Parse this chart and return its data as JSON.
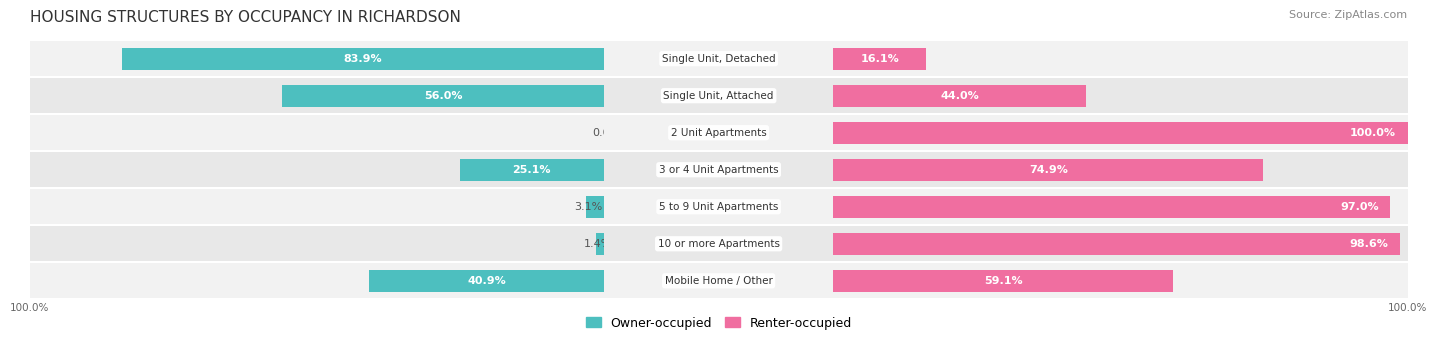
{
  "title": "HOUSING STRUCTURES BY OCCUPANCY IN RICHARDSON",
  "source": "Source: ZipAtlas.com",
  "categories": [
    "Single Unit, Detached",
    "Single Unit, Attached",
    "2 Unit Apartments",
    "3 or 4 Unit Apartments",
    "5 to 9 Unit Apartments",
    "10 or more Apartments",
    "Mobile Home / Other"
  ],
  "owner_pct": [
    83.9,
    56.0,
    0.0,
    25.1,
    3.1,
    1.4,
    40.9
  ],
  "renter_pct": [
    16.1,
    44.0,
    100.0,
    74.9,
    97.0,
    98.6,
    59.1
  ],
  "owner_color": "#4DBFBF",
  "renter_color": "#F06EA0",
  "title_fontsize": 11,
  "label_fontsize": 8,
  "source_fontsize": 8,
  "legend_fontsize": 9,
  "bar_height": 0.6,
  "row_bg_even": "#F2F2F2",
  "row_bg_odd": "#E8E8E8",
  "figsize": [
    14.06,
    3.41
  ]
}
